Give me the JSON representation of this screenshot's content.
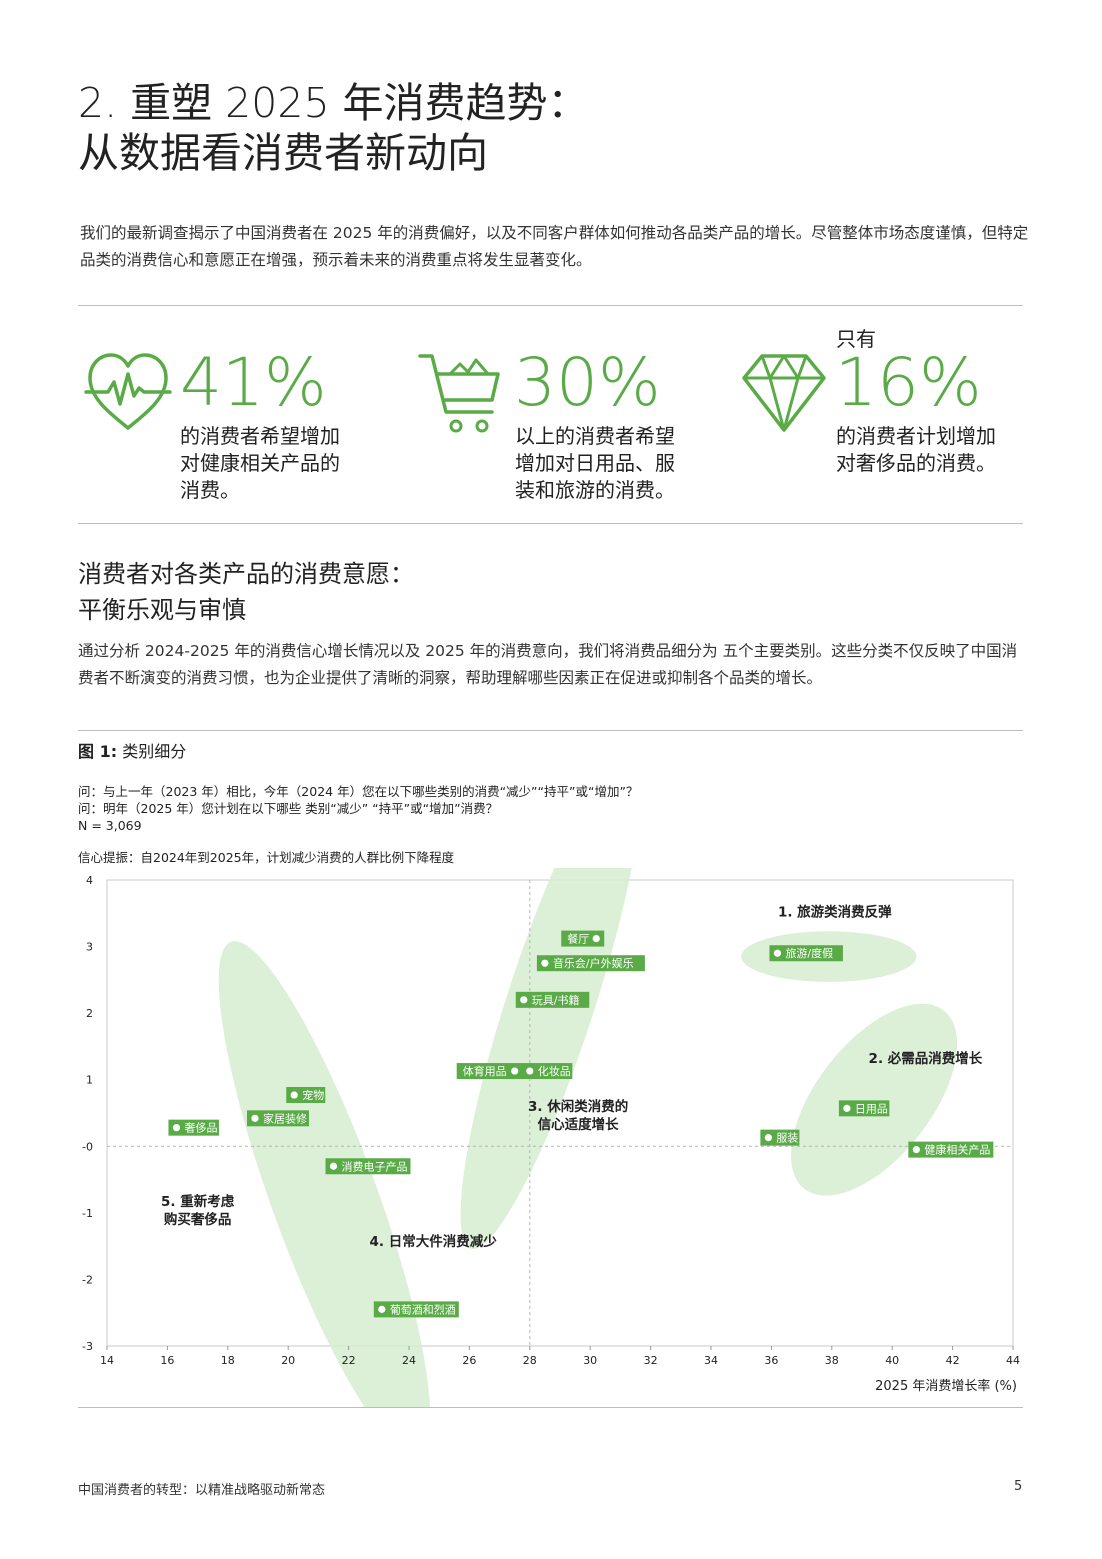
{
  "title_line1": "2. 重塑 2025 年消费趋势：",
  "title_line2": "从数据看消费者新动向",
  "intro": "我们的最新调查揭示了中国消费者在 2025 年的消费偏好，以及不同客户群体如何推动各品类产品的增长。尽管整体市场态度谨慎，但特定品类的消费信心和意愿正在增强，预示着未来的消费重点将发生显著变化。",
  "stats": [
    {
      "icon": "heart-pulse-icon",
      "value": "41%",
      "pre": "",
      "desc_lines": [
        "的消费者希望增加",
        "对健康相关产品的",
        "消费。"
      ]
    },
    {
      "icon": "shopping-cart-icon",
      "value": "30%",
      "pre": "",
      "desc_lines": [
        "以上的消费者希望",
        "增加对日用品、服",
        "装和旅游的消费。"
      ]
    },
    {
      "icon": "diamond-icon",
      "value": "16%",
      "pre": "只有",
      "desc_lines": [
        "的消费者计划增加",
        "对奢侈品的消费。"
      ]
    }
  ],
  "subhead_line1": "消费者对各类产品的消费意愿：",
  "subhead_line2": "平衡乐观与审慎",
  "para2": "通过分析 2024-2025 年的消费信心增长情况以及 2025 年的消费意向，我们将消费品细分为 五个主要类别。这些分类不仅反映了中国消费者不断演变的消费习惯，也为企业提供了清晰的洞察，帮助理解哪些因素正在促进或抑制各个品类的增长。",
  "figure_label": "图 1:",
  "figure_title": "类别细分",
  "questions": [
    "问：与上一年（2023 年）相比，今年（2024 年）您在以下哪些类别的消费“减少”“持平”或“增加”？",
    "问：明年（2025 年）您计划在以下哪些 类别“减少” “持平”或“增加”消费？",
    "N = 3,069"
  ],
  "confidence_note": "信心提振：自2024年到2025年，计划减少消费的人群比例下降程度",
  "footer_left": "中国消费者的转型：以精准战略驱动新常态",
  "footer_right": "5",
  "chart_data": {
    "type": "scatter",
    "xlabel": "2025 年消费增长率 (%)",
    "ylabel": "",
    "xlim": [
      14,
      44
    ],
    "ylim": [
      -3,
      4
    ],
    "xticks": [
      14,
      16,
      18,
      20,
      22,
      24,
      26,
      28,
      30,
      32,
      34,
      36,
      38,
      40,
      42,
      44
    ],
    "yticks": [
      4,
      3,
      2,
      1,
      0,
      -1,
      -2,
      -3
    ],
    "ytick_labels": [
      "4",
      "3",
      "2",
      "1",
      "-0",
      "-1",
      "-2",
      "-3"
    ],
    "reference_lines": {
      "x": 28,
      "y": 0
    },
    "marker_color": "#5aab48",
    "cluster_color": "#d6ecd0",
    "points": [
      {
        "label": "旅游/度假",
        "x": 36.2,
        "y": 2.9,
        "label_side": "right"
      },
      {
        "label": "餐厅",
        "x": 30.2,
        "y": 3.12,
        "label_side": "left"
      },
      {
        "label": "音乐会/户外娱乐",
        "x": 28.5,
        "y": 2.75,
        "label_side": "right"
      },
      {
        "label": "玩具/书籍",
        "x": 27.8,
        "y": 2.2,
        "label_side": "right"
      },
      {
        "label": "体育用品",
        "x": 27.5,
        "y": 1.13,
        "label_side": "left"
      },
      {
        "label": "化妆品",
        "x": 28.0,
        "y": 1.13,
        "label_side": "right"
      },
      {
        "label": "日用品",
        "x": 38.5,
        "y": 0.57,
        "label_side": "right"
      },
      {
        "label": "服装",
        "x": 35.9,
        "y": 0.13,
        "label_side": "right"
      },
      {
        "label": "健康相关产品",
        "x": 40.8,
        "y": -0.05,
        "label_side": "right"
      },
      {
        "label": "宠物",
        "x": 20.2,
        "y": 0.77,
        "label_side": "right"
      },
      {
        "label": "家居装修",
        "x": 18.9,
        "y": 0.42,
        "label_side": "right"
      },
      {
        "label": "奢侈品",
        "x": 16.3,
        "y": 0.28,
        "label_side": "right"
      },
      {
        "label": "消费电子产品",
        "x": 21.5,
        "y": -0.3,
        "label_side": "right"
      },
      {
        "label": "葡萄酒和烈酒",
        "x": 23.1,
        "y": -2.45,
        "label_side": "right"
      }
    ],
    "clusters": [
      {
        "name": "1. 旅游类消费反弹",
        "label_lines": [
          "1. 旅游类消费反弹"
        ],
        "cx": 37.9,
        "cy": 2.85,
        "rx": 2.9,
        "ry": 0.38,
        "rot": 0,
        "lx": 38.1,
        "ly": 3.45,
        "anchor": "middle"
      },
      {
        "name": "2. 必需品消费增长",
        "label_lines": [
          "2. 必需品消费增长"
        ],
        "cx": 39.4,
        "cy": 0.7,
        "rx": 1.9,
        "ry": 1.7,
        "rot": 38,
        "lx": 41.1,
        "ly": 1.25,
        "anchor": "middle"
      },
      {
        "name": "3. 休闲类消费的信心适度增长",
        "label_lines": [
          "3. 休闲类消费的",
          "信心适度增长"
        ],
        "cx": 28.7,
        "cy": 2.17,
        "rx": 1.45,
        "ry": 3.9,
        "rot": 18,
        "lx": 29.6,
        "ly": 0.53,
        "anchor": "middle"
      },
      {
        "name": "4. 日常大件消费减少",
        "label_lines": [
          "4. 日常大件消费减少"
        ],
        "cx": 21.2,
        "cy": -0.78,
        "rx": 1.75,
        "ry": 4.1,
        "rot": -20,
        "lx": 24.8,
        "ly": -1.5,
        "anchor": "middle"
      },
      {
        "name": "5. 重新考虑购买奢侈品",
        "label_lines": [
          "5. 重新考虑",
          "购买奢侈品"
        ],
        "cx": null,
        "cy": null,
        "lx": 17.0,
        "ly": -0.9,
        "anchor": "middle"
      }
    ]
  }
}
